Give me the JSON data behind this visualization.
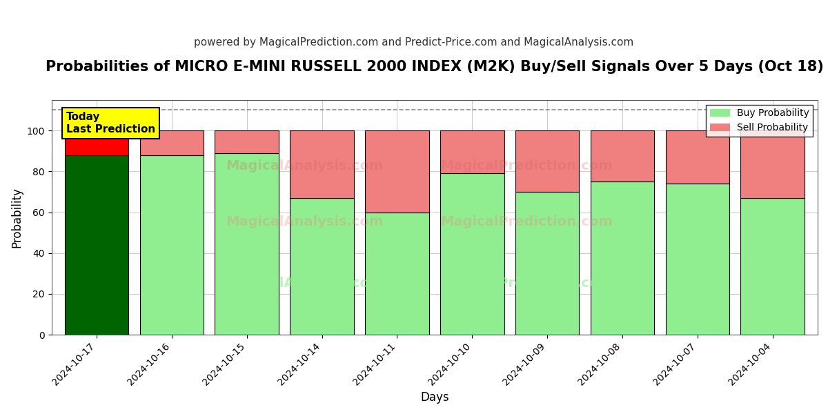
{
  "title": "Probabilities of MICRO E-MINI RUSSELL 2000 INDEX (M2K) Buy/Sell Signals Over 5 Days (Oct 18)",
  "subtitle": "powered by MagicalPrediction.com and Predict-Price.com and MagicalAnalysis.com",
  "xlabel": "Days",
  "ylabel": "Probability",
  "categories": [
    "2024-10-17",
    "2024-10-16",
    "2024-10-15",
    "2024-10-14",
    "2024-10-11",
    "2024-10-10",
    "2024-10-09",
    "2024-10-08",
    "2024-10-07",
    "2024-10-04"
  ],
  "buy_values": [
    88,
    88,
    89,
    67,
    60,
    79,
    70,
    75,
    74,
    67
  ],
  "sell_values": [
    12,
    12,
    11,
    33,
    40,
    21,
    30,
    25,
    26,
    33
  ],
  "today_buy_color": "#006400",
  "today_sell_color": "#ff0000",
  "buy_color": "#90EE90",
  "sell_color": "#F08080",
  "today_annotation": "Today\nLast Prediction",
  "today_annotation_bg": "#ffff00",
  "today_bar_index": 0,
  "ylim": [
    0,
    115
  ],
  "dashed_line_y": 110,
  "legend_buy_label": "Buy Probability",
  "legend_sell_label": "Sell Probability",
  "background_color": "#ffffff",
  "grid_color": "#cccccc",
  "title_fontsize": 15,
  "subtitle_fontsize": 11,
  "bar_edge_color": "#000000",
  "bar_edge_linewidth": 0.8,
  "bar_width": 0.85
}
